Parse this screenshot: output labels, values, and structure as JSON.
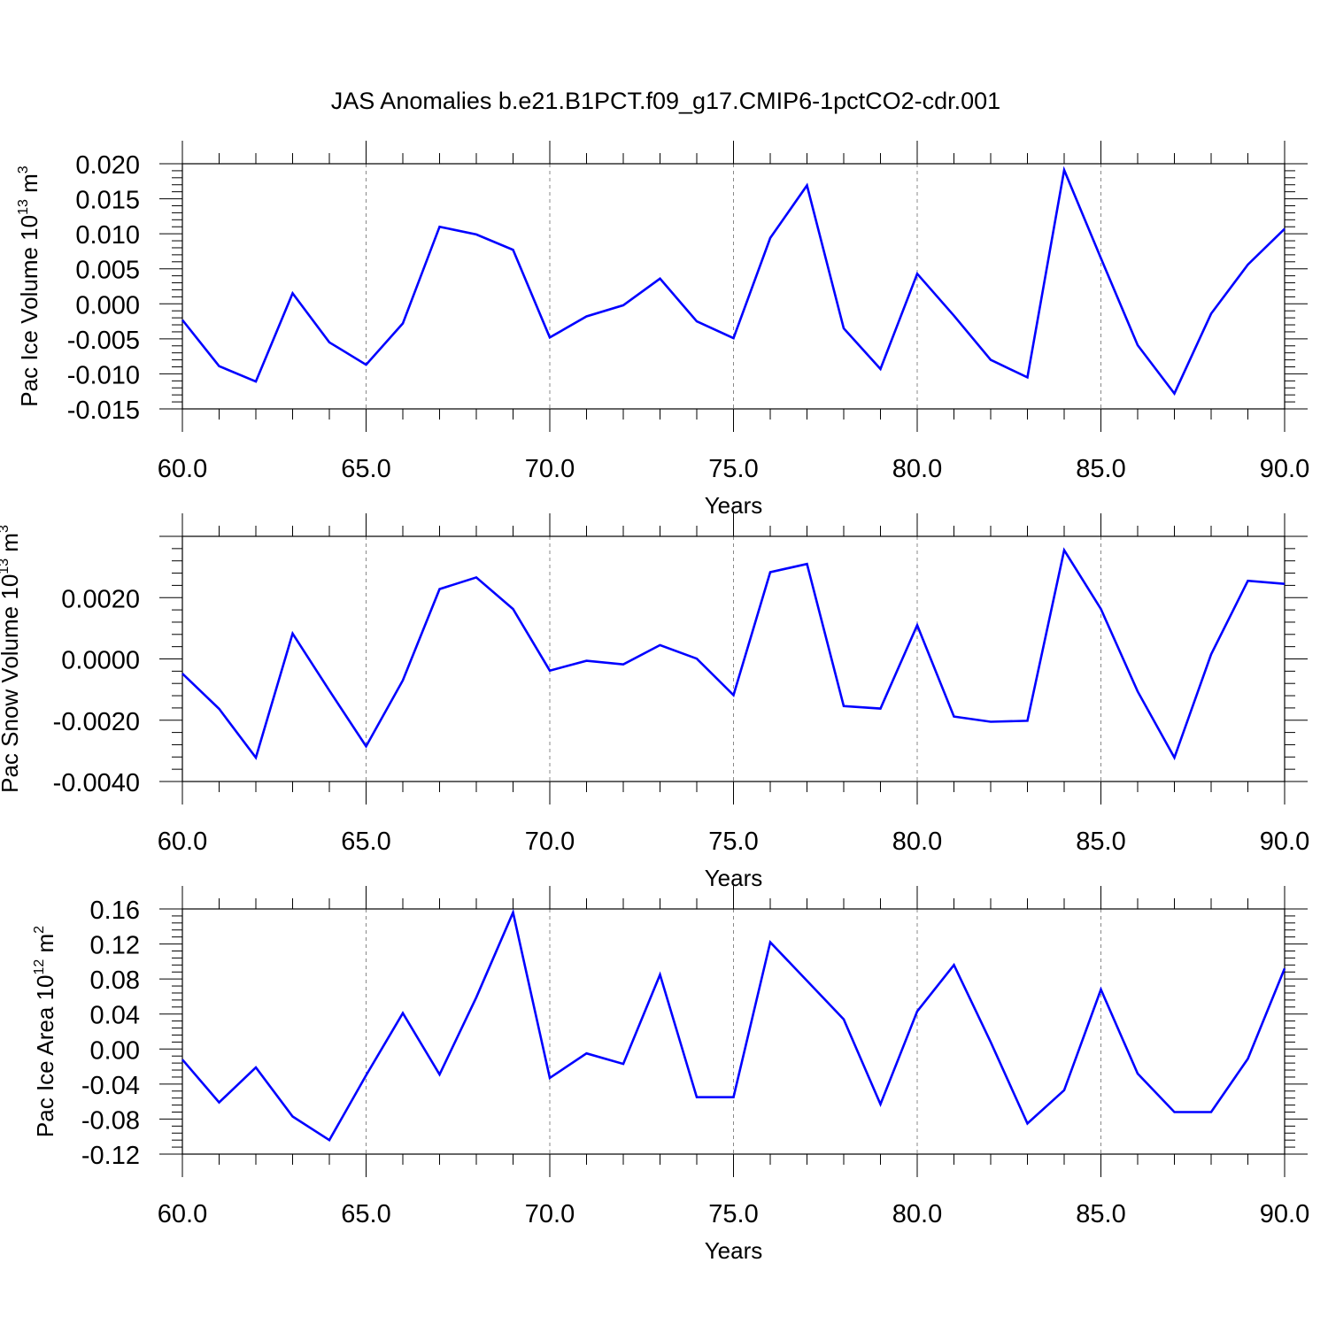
{
  "title": "JAS Anomalies b.e21.B1PCT.f09_g17.CMIP6-1pctCO2-cdr.001",
  "line_color": "#0000ff",
  "chart_data": [
    {
      "type": "line",
      "ylabel": "Pac Ice Volume 10",
      "ylabel_sup": "13",
      "ylabel_unit": " m",
      "ylabel_unit_sup": "3",
      "xlabel": "Years",
      "xlim": [
        60,
        90
      ],
      "ylim": [
        -0.015,
        0.02
      ],
      "xticks": [
        "60.0",
        "65.0",
        "70.0",
        "75.0",
        "80.0",
        "85.0",
        "90.0"
      ],
      "yticks": [
        "0.020",
        "0.015",
        "0.010",
        "0.005",
        "0.000",
        "-0.005",
        "-0.010",
        "-0.015"
      ],
      "yticks_values": [
        0.02,
        0.015,
        0.01,
        0.005,
        0.0,
        -0.005,
        -0.01,
        -0.015
      ],
      "grid": "vertical dashed at x tick marks",
      "x": [
        60,
        61,
        62,
        63,
        64,
        65,
        66,
        67,
        68,
        69,
        70,
        71,
        72,
        73,
        74,
        75,
        76,
        77,
        78,
        79,
        80,
        81,
        82,
        83,
        84,
        85,
        86,
        87,
        88,
        89,
        90
      ],
      "series": [
        {
          "values": [
            -0.0023,
            -0.0089,
            -0.0111,
            0.0015,
            -0.0055,
            -0.0087,
            -0.0028,
            0.011,
            0.0099,
            0.0077,
            -0.0048,
            -0.0018,
            -0.0002,
            0.0036,
            -0.0025,
            -0.0049,
            0.0094,
            0.0169,
            -0.0035,
            -0.0093,
            0.0043,
            -0.0017,
            -0.008,
            -0.0105,
            0.0191,
            0.0065,
            -0.0059,
            -0.0128,
            -0.0014,
            0.0056,
            0.0107
          ]
        }
      ]
    },
    {
      "type": "line",
      "ylabel": "Pac Snow Volume 10",
      "ylabel_sup": "13",
      "ylabel_unit": " m",
      "ylabel_unit_sup": "3",
      "xlabel": "Years",
      "xlim": [
        60,
        90
      ],
      "ylim": [
        -0.004,
        0.004
      ],
      "xticks": [
        "60.0",
        "65.0",
        "70.0",
        "75.0",
        "80.0",
        "85.0",
        "90.0"
      ],
      "yticks": [
        "0.0020",
        "0.0000",
        "-0.0020",
        "-0.0040"
      ],
      "yticks_values": [
        0.002,
        0.0,
        -0.002,
        -0.004
      ],
      "grid": "vertical dashed at x tick marks",
      "x": [
        60,
        61,
        62,
        63,
        64,
        65,
        66,
        67,
        68,
        69,
        70,
        71,
        72,
        73,
        74,
        75,
        76,
        77,
        78,
        79,
        80,
        81,
        82,
        83,
        84,
        85,
        86,
        87,
        88,
        89,
        90
      ],
      "series": [
        {
          "values": [
            -0.00048,
            -0.00163,
            -0.00322,
            0.00083,
            -0.00103,
            -0.00285,
            -0.0007,
            0.00228,
            0.00266,
            0.00163,
            -0.00038,
            -6e-05,
            -0.00018,
            0.00045,
            1e-05,
            -0.00118,
            0.00283,
            0.0031,
            -0.00154,
            -0.00162,
            0.0011,
            -0.00188,
            -0.00205,
            -0.00202,
            0.00355,
            0.00163,
            -0.00106,
            -0.00322,
            0.00015,
            0.00255,
            0.00245
          ]
        }
      ]
    },
    {
      "type": "line",
      "ylabel": "Pac Ice Area 10",
      "ylabel_sup": "12",
      "ylabel_unit": " m",
      "ylabel_unit_sup": "2",
      "xlabel": "Years",
      "xlim": [
        60,
        90
      ],
      "ylim": [
        -0.12,
        0.16
      ],
      "xticks": [
        "60.0",
        "65.0",
        "70.0",
        "75.0",
        "80.0",
        "85.0",
        "90.0"
      ],
      "yticks": [
        "0.16",
        "0.12",
        "0.08",
        "0.04",
        "0.00",
        "-0.04",
        "-0.08",
        "-0.12"
      ],
      "yticks_values": [
        0.16,
        0.12,
        0.08,
        0.04,
        0.0,
        -0.04,
        -0.08,
        -0.12
      ],
      "grid": "vertical dashed at x tick marks",
      "x": [
        60,
        61,
        62,
        63,
        64,
        65,
        66,
        67,
        68,
        69,
        70,
        71,
        72,
        73,
        74,
        75,
        76,
        77,
        78,
        79,
        80,
        81,
        82,
        83,
        84,
        85,
        86,
        87,
        88,
        89,
        90
      ],
      "series": [
        {
          "values": [
            -0.012,
            -0.061,
            -0.021,
            -0.077,
            -0.104,
            -0.03,
            0.041,
            -0.029,
            0.059,
            0.156,
            -0.033,
            -0.005,
            -0.017,
            0.085,
            -0.055,
            -0.055,
            0.122,
            0.078,
            0.034,
            -0.063,
            0.043,
            0.096,
            0.008,
            -0.085,
            -0.047,
            0.068,
            -0.028,
            -0.072,
            -0.072,
            -0.011,
            0.092
          ]
        }
      ]
    }
  ]
}
